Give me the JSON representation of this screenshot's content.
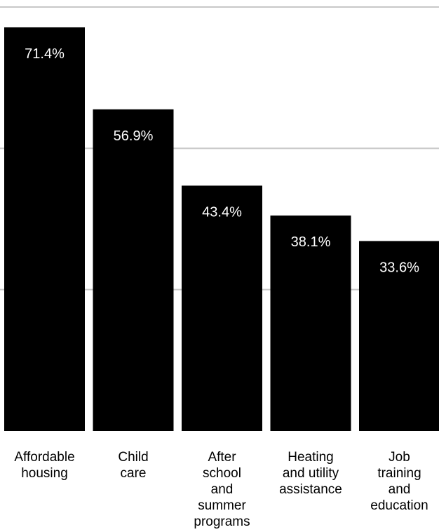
{
  "chart_data": {
    "type": "bar",
    "categories": [
      "Affordable housing",
      "Child care",
      "After school and summer programs",
      "Heating and utility assistance",
      "Job training and education"
    ],
    "category_lines": [
      [
        "Affordable",
        "housing"
      ],
      [
        "Child",
        "care"
      ],
      [
        "After",
        "school",
        "and",
        "summer",
        "programs"
      ],
      [
        "Heating",
        "and utility",
        "assistance"
      ],
      [
        "Job",
        "training",
        "and",
        "education"
      ]
    ],
    "values": [
      71.4,
      56.9,
      43.4,
      38.1,
      33.6
    ],
    "value_labels": [
      "71.4%",
      "56.9%",
      "43.4%",
      "38.1%",
      "33.6%"
    ],
    "ylim": [
      0,
      75
    ],
    "gridlines": [
      25,
      50,
      75
    ],
    "grid": true,
    "title": "",
    "xlabel": "",
    "ylabel": "",
    "colors": {
      "bar": "#000000",
      "grid": "#c8c8c8",
      "value_text": "#ffffff",
      "category_text": "#000000"
    }
  }
}
